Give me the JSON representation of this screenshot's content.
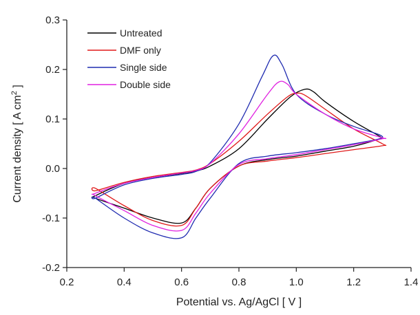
{
  "chart_data": {
    "type": "line",
    "title": "",
    "xlabel": "Potential vs. Ag/AgCl [ V ]",
    "ylabel_main": "Current density [ A cm",
    "ylabel_sup": "2",
    "ylabel_end": " ]",
    "xlim": [
      0.2,
      1.4
    ],
    "ylim": [
      -0.2,
      0.3
    ],
    "xticks": [
      "0.2",
      "0.4",
      "0.6",
      "0.8",
      "1.0",
      "1.2",
      "1.4"
    ],
    "yticks": [
      "-0.2",
      "-0.1",
      "0.0",
      "0.1",
      "0.2",
      "0.3"
    ],
    "grid": false,
    "legend_position": "top-left",
    "series": [
      {
        "name": "Untreated",
        "color": "#000000",
        "x": [
          0.3,
          0.4,
          0.5,
          0.6,
          0.65,
          0.7,
          0.8,
          0.9,
          0.98,
          1.03,
          1.06,
          1.1,
          1.2,
          1.29,
          1.29,
          1.2,
          1.1,
          1.0,
          0.9,
          0.8,
          0.7,
          0.65,
          0.6,
          0.5,
          0.4,
          0.3
        ],
        "y": [
          -0.055,
          -0.03,
          -0.018,
          -0.01,
          -0.005,
          0.005,
          0.04,
          0.1,
          0.145,
          0.16,
          0.155,
          0.135,
          0.095,
          0.065,
          0.06,
          0.045,
          0.035,
          0.025,
          0.018,
          0.005,
          -0.04,
          -0.08,
          -0.11,
          -0.1,
          -0.08,
          -0.06
        ]
      },
      {
        "name": "DMF only",
        "color": "#e01818",
        "x": [
          0.3,
          0.4,
          0.5,
          0.6,
          0.65,
          0.7,
          0.8,
          0.9,
          0.97,
          1.0,
          1.03,
          1.1,
          1.2,
          1.3,
          1.3,
          1.2,
          1.1,
          1.0,
          0.9,
          0.8,
          0.7,
          0.65,
          0.6,
          0.5,
          0.4,
          0.3
        ],
        "y": [
          -0.045,
          -0.028,
          -0.016,
          -0.008,
          -0.003,
          0.01,
          0.055,
          0.11,
          0.145,
          0.152,
          0.148,
          0.12,
          0.08,
          0.05,
          0.046,
          0.038,
          0.03,
          0.022,
          0.015,
          0.005,
          -0.04,
          -0.08,
          -0.115,
          -0.105,
          -0.075,
          -0.04
        ]
      },
      {
        "name": "Single side",
        "color": "#1f2bb0",
        "x": [
          0.3,
          0.4,
          0.5,
          0.6,
          0.65,
          0.7,
          0.8,
          0.88,
          0.92,
          0.95,
          1.0,
          1.1,
          1.2,
          1.29,
          1.29,
          1.2,
          1.1,
          1.0,
          0.9,
          0.8,
          0.7,
          0.65,
          0.6,
          0.5,
          0.4,
          0.3
        ],
        "y": [
          -0.06,
          -0.033,
          -0.02,
          -0.012,
          -0.006,
          0.012,
          0.09,
          0.185,
          0.228,
          0.21,
          0.15,
          0.11,
          0.085,
          0.068,
          0.06,
          0.05,
          0.04,
          0.032,
          0.025,
          0.01,
          -0.06,
          -0.1,
          -0.14,
          -0.13,
          -0.1,
          -0.06
        ]
      },
      {
        "name": "Double side",
        "color": "#e020e0",
        "x": [
          0.3,
          0.4,
          0.5,
          0.6,
          0.65,
          0.7,
          0.8,
          0.9,
          0.94,
          0.97,
          1.0,
          1.1,
          1.2,
          1.3,
          1.3,
          1.2,
          1.1,
          1.0,
          0.9,
          0.8,
          0.7,
          0.65,
          0.6,
          0.5,
          0.4,
          0.3
        ],
        "y": [
          -0.05,
          -0.03,
          -0.018,
          -0.009,
          -0.004,
          0.01,
          0.07,
          0.15,
          0.175,
          0.17,
          0.15,
          0.11,
          0.08,
          0.062,
          0.06,
          0.048,
          0.038,
          0.028,
          0.02,
          0.008,
          -0.05,
          -0.09,
          -0.125,
          -0.115,
          -0.085,
          -0.055
        ]
      }
    ]
  }
}
